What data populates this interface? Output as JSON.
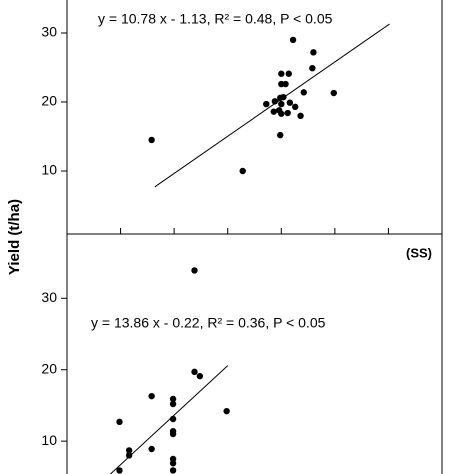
{
  "chart_data": [
    {
      "type": "scatter",
      "ylabel": "Yield (t/ha)",
      "annotation": "y = 10.78 x - 1.13, R² = 0.48, P < 0.05",
      "xlim": [
        0,
        3.5
      ],
      "xticks": [
        0.5,
        1.0,
        1.5,
        2.0,
        2.5,
        3.0
      ],
      "ylim": [
        1,
        35
      ],
      "yticks": [
        10,
        20,
        30
      ],
      "color": "#000000",
      "x": [
        0.79,
        1.64,
        2.0,
        1.86,
        1.94,
        2.0,
        2.0,
        2.07,
        2.04,
        2.11,
        1.99,
        2.02,
        1.98,
        2.0,
        2.06,
        1.99,
        2.13,
        2.18,
        2.21,
        2.3,
        2.29,
        2.49,
        1.93,
        2.08
      ],
      "values": [
        14.5,
        10.0,
        19.7,
        19.7,
        20.1,
        24.1,
        22.6,
        24.1,
        22.6,
        29.0,
        20.6,
        20.7,
        18.8,
        18.3,
        18.4,
        15.2,
        19.3,
        18.0,
        21.4,
        27.2,
        24.9,
        21.3,
        18.6,
        19.9
      ],
      "trendline": {
        "x": [
          0.82,
          3.01
        ],
        "y": [
          7.71,
          31.3
        ]
      }
    },
    {
      "type": "scatter",
      "label": "(SS)",
      "annotation": "y = 13.86 x - 0.22, R² = 0.36, P < 0.05",
      "xlim": [
        0,
        3.5
      ],
      "ylim": [
        5.4,
        39
      ],
      "yticks": [
        10,
        20,
        30
      ],
      "color": "#000000",
      "x": [
        1.19,
        0.79,
        0.49,
        0.58,
        0.58,
        0.79,
        0.99,
        0.99,
        0.99,
        0.99,
        0.99,
        0.99,
        0.99,
        0.99,
        1.19,
        1.24,
        1.49,
        0.49
      ],
      "values": [
        33.9,
        16.3,
        12.7,
        8.7,
        8.0,
        8.9,
        15.9,
        15.2,
        13.1,
        11.4,
        11.0,
        7.5,
        6.9,
        5.9,
        19.7,
        19.1,
        14.2,
        5.9
      ],
      "trendline": {
        "x": [
          0.4,
          1.5
        ],
        "y": [
          5.32,
          20.57
        ]
      }
    }
  ]
}
